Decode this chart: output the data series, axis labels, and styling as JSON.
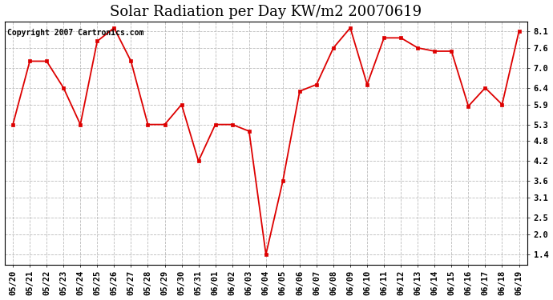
{
  "title": "Solar Radiation per Day KW/m2 20070619",
  "copyright": "Copyright 2007 Cartronics.com",
  "dates": [
    "05/20",
    "05/21",
    "05/22",
    "05/23",
    "05/24",
    "05/25",
    "05/26",
    "05/27",
    "05/28",
    "05/29",
    "05/30",
    "05/31",
    "06/01",
    "06/02",
    "06/03",
    "06/04",
    "06/05",
    "06/06",
    "06/07",
    "06/08",
    "06/09",
    "06/10",
    "06/11",
    "06/12",
    "06/13",
    "06/14",
    "06/15",
    "06/16",
    "06/17",
    "06/18",
    "06/19"
  ],
  "values": [
    5.3,
    7.2,
    7.2,
    6.4,
    5.3,
    7.8,
    8.2,
    7.2,
    5.3,
    5.3,
    5.9,
    4.2,
    5.3,
    5.3,
    5.1,
    1.4,
    3.6,
    6.3,
    6.5,
    7.6,
    8.2,
    6.5,
    7.9,
    7.9,
    7.6,
    7.5,
    7.5,
    5.85,
    6.4,
    5.9,
    8.1
  ],
  "line_color": "#dd0000",
  "marker": "s",
  "marker_size": 3,
  "bg_color": "#ffffff",
  "grid_color": "#bbbbbb",
  "ylim": [
    1.1,
    8.4
  ],
  "yticks": [
    1.4,
    2.0,
    2.5,
    3.1,
    3.6,
    4.2,
    4.8,
    5.3,
    5.9,
    6.4,
    7.0,
    7.6,
    8.1
  ],
  "title_fontsize": 13,
  "copyright_fontsize": 7,
  "tick_fontsize": 7.5,
  "figwidth": 6.9,
  "figheight": 3.75,
  "dpi": 100
}
